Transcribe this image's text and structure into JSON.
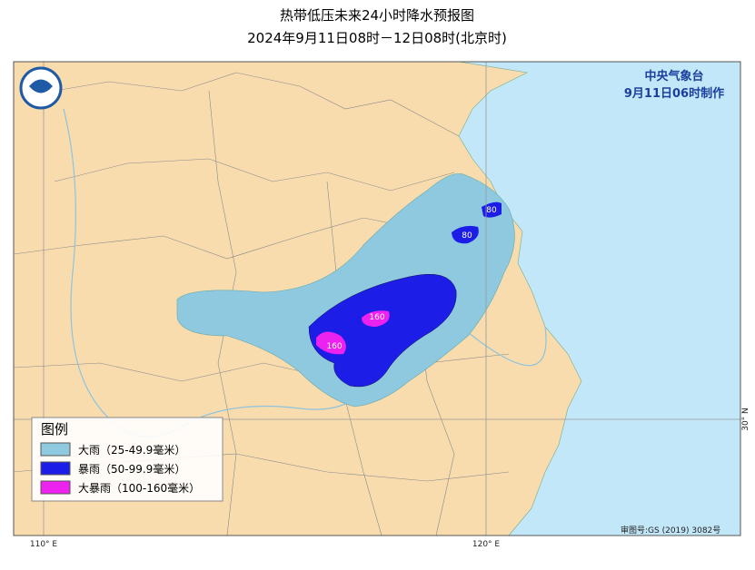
{
  "title": {
    "line1": "热带低压未来24小时降水预报图",
    "line2": "2024年9月11日08时－12日08时(北京时)"
  },
  "issuer": {
    "agency": "中央气象台",
    "issued": "9月11日06时制作"
  },
  "legend": {
    "title": "图例",
    "items": [
      "大雨（25-49.9毫米）",
      "暴雨（50-99.9毫米）",
      "大暴雨（100-160毫米）"
    ]
  },
  "contour_labels": [
    80,
    80,
    160,
    160
  ],
  "axis_labels": {
    "lon_110": "110° E",
    "lon_120": "120° E",
    "lat_30": "30° N"
  },
  "footer": "审图号:GS (2019) 3082号"
}
